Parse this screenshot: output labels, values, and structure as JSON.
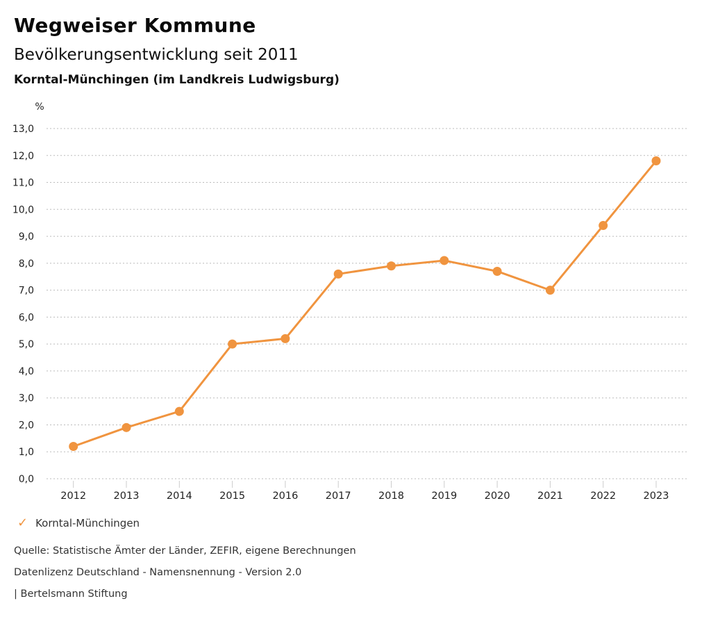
{
  "header": {
    "title": "Wegweiser Kommune",
    "subtitle": "Bevölkerungsentwicklung seit 2011",
    "region": "Korntal-Münchingen (im Landkreis Ludwigsburg)"
  },
  "chart_data": {
    "type": "line",
    "title": "Bevölkerungsentwicklung seit 2011",
    "region_subtitle": "Korntal-Münchingen (im Landkreis Ludwigsburg)",
    "categories": [
      "2012",
      "2013",
      "2014",
      "2015",
      "2016",
      "2017",
      "2018",
      "2019",
      "2020",
      "2021",
      "2022",
      "2023"
    ],
    "series": [
      {
        "name": "Korntal-Münchingen",
        "values": [
          1.2,
          1.9,
          2.5,
          5.0,
          5.2,
          7.6,
          7.9,
          8.1,
          7.7,
          7.0,
          9.4,
          11.8
        ],
        "color": "#F0943F"
      }
    ],
    "xlabel": "",
    "ylabel": "%",
    "ylim": [
      0.0,
      13.0
    ],
    "ytick_step": 1.0,
    "ytick_labels": [
      "0,0",
      "1,0",
      "2,0",
      "3,0",
      "4,0",
      "5,0",
      "6,0",
      "7,0",
      "8,0",
      "9,0",
      "10,0",
      "11,0",
      "12,0",
      "13,0"
    ],
    "grid": "horizontal-dotted",
    "legend_position": "bottom-left",
    "marker": "circle"
  },
  "legend": {
    "check_icon": "✓",
    "label": "Korntal-Münchingen",
    "color": "#F0943F"
  },
  "footer": {
    "source": "Quelle: Statistische Ämter der Länder, ZEFIR, eigene Berechnungen",
    "license": "Datenlizenz Deutschland - Namensnennung - Version 2.0",
    "attribution": "| Bertelsmann Stiftung"
  },
  "colors": {
    "series_line": "#F0943F",
    "gridline": "#BBBBBB",
    "tick": "#CCCCCC",
    "axis_text": "#222222",
    "title_text": "#0A0A0A",
    "footer_text": "#333333",
    "background": "#FFFFFF"
  }
}
